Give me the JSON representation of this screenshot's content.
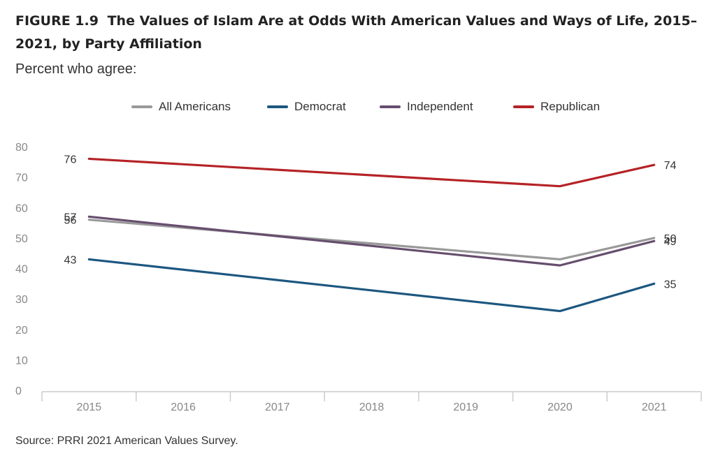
{
  "figure": {
    "label": "FIGURE 1.9",
    "title": "The Values of Islam Are at Odds With American Values and Ways of Life, 2015–2021, by Party Affiliation",
    "subtitle": "Percent who agree:",
    "source": "Source: PRRI 2021 American Values Survey."
  },
  "chart_data": {
    "type": "line",
    "x": [
      "2015",
      "2016",
      "2017",
      "2018",
      "2019",
      "2020",
      "2021"
    ],
    "ylim": [
      0,
      80
    ],
    "yticks": [
      0,
      10,
      20,
      30,
      40,
      50,
      60,
      70,
      80
    ],
    "grid": false,
    "legend_position": "top-center",
    "series": [
      {
        "name": "All Americans",
        "color": "#999999",
        "points": [
          {
            "x": "2015",
            "y": 56
          },
          {
            "x": "2020",
            "y": 43
          },
          {
            "x": "2021",
            "y": 50
          }
        ],
        "labels": [
          {
            "x": "2015",
            "y": 56,
            "text": "56"
          },
          {
            "x": "2021",
            "y": 50,
            "text": "50"
          }
        ]
      },
      {
        "name": "Democrat",
        "color": "#1c5780",
        "points": [
          {
            "x": "2015",
            "y": 43
          },
          {
            "x": "2020",
            "y": 26
          },
          {
            "x": "2021",
            "y": 35
          }
        ],
        "labels": [
          {
            "x": "2015",
            "y": 43,
            "text": "43"
          },
          {
            "x": "2021",
            "y": 35,
            "text": "35"
          }
        ]
      },
      {
        "name": "Independent",
        "color": "#664e6e",
        "points": [
          {
            "x": "2015",
            "y": 57
          },
          {
            "x": "2020",
            "y": 41
          },
          {
            "x": "2021",
            "y": 49
          }
        ],
        "labels": [
          {
            "x": "2015",
            "y": 57,
            "text": "57"
          },
          {
            "x": "2021",
            "y": 49,
            "text": "49"
          }
        ]
      },
      {
        "name": "Republican",
        "color": "#b52226",
        "points": [
          {
            "x": "2015",
            "y": 76
          },
          {
            "x": "2020",
            "y": 67
          },
          {
            "x": "2021",
            "y": 74
          }
        ],
        "labels": [
          {
            "x": "2015",
            "y": 76,
            "text": "76"
          },
          {
            "x": "2021",
            "y": 74,
            "text": "74"
          }
        ]
      }
    ]
  }
}
